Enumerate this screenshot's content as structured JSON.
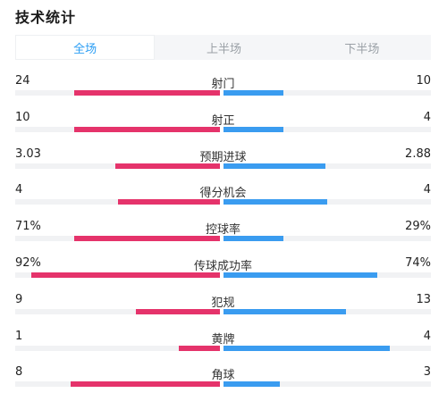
{
  "title": "技术统计",
  "tabs": [
    {
      "label": "全场",
      "active": true
    },
    {
      "label": "上半场",
      "active": false
    },
    {
      "label": "下半场",
      "active": false
    }
  ],
  "colors": {
    "home": "#e5336b",
    "away": "#3a9cf0",
    "active_tab": "#2a9df4"
  },
  "stats": [
    {
      "label": "射门",
      "left": "24",
      "right": "10",
      "left_fill": 0.71,
      "right_fill": 0.29
    },
    {
      "label": "射正",
      "left": "10",
      "right": "4",
      "left_fill": 0.71,
      "right_fill": 0.29
    },
    {
      "label": "预期进球",
      "left": "3.03",
      "right": "2.88",
      "left_fill": 0.51,
      "right_fill": 0.49
    },
    {
      "label": "得分机会",
      "left": "4",
      "right": "4",
      "left_fill": 0.5,
      "right_fill": 0.5
    },
    {
      "label": "控球率",
      "left": "71%",
      "right": "29%",
      "left_fill": 0.71,
      "right_fill": 0.29
    },
    {
      "label": "传球成功率",
      "left": "92%",
      "right": "74%",
      "left_fill": 0.92,
      "right_fill": 0.74
    },
    {
      "label": "犯规",
      "left": "9",
      "right": "13",
      "left_fill": 0.41,
      "right_fill": 0.59
    },
    {
      "label": "黄牌",
      "left": "1",
      "right": "4",
      "left_fill": 0.2,
      "right_fill": 0.8
    },
    {
      "label": "角球",
      "left": "8",
      "right": "3",
      "left_fill": 0.73,
      "right_fill": 0.27
    }
  ]
}
